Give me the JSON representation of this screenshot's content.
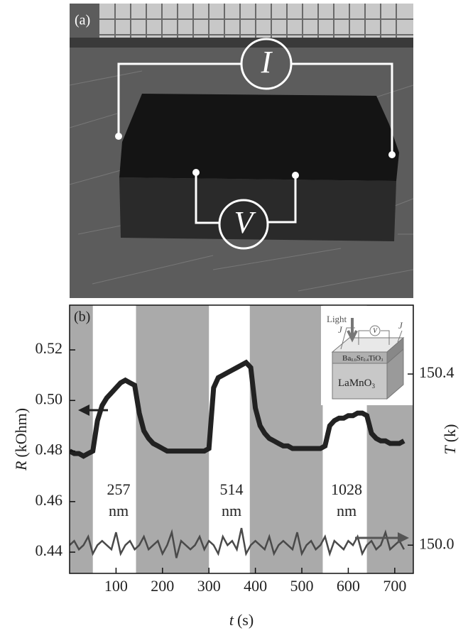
{
  "panel_a": {
    "label": "(a)",
    "current_symbol": "I",
    "voltage_symbol": "V"
  },
  "chart_data": {
    "type": "line",
    "panel_label": "(b)",
    "x_label": {
      "symbol": "t",
      "unit": "(s)"
    },
    "y_label": {
      "symbol": "R",
      "unit": "(kOhm)"
    },
    "y2_label": {
      "symbol": "T",
      "unit": "(k)"
    },
    "x": [
      0,
      10,
      20,
      30,
      40,
      50,
      60,
      70,
      80,
      90,
      100,
      110,
      120,
      130,
      140,
      150,
      160,
      170,
      180,
      190,
      200,
      210,
      220,
      230,
      240,
      250,
      260,
      270,
      280,
      290,
      300,
      310,
      320,
      330,
      340,
      350,
      360,
      370,
      380,
      390,
      400,
      410,
      420,
      430,
      440,
      450,
      460,
      470,
      480,
      490,
      500,
      510,
      520,
      530,
      540,
      550,
      560,
      570,
      580,
      590,
      600,
      610,
      620,
      630,
      640,
      650,
      660,
      670,
      680,
      690,
      700,
      710,
      720
    ],
    "series": [
      {
        "color": "#222222",
        "values": [
          0.48,
          0.479,
          0.479,
          0.478,
          0.479,
          0.48,
          0.492,
          0.498,
          0.501,
          0.503,
          0.505,
          0.507,
          0.508,
          0.507,
          0.506,
          0.495,
          0.488,
          0.485,
          0.483,
          0.482,
          0.481,
          0.48,
          0.48,
          0.48,
          0.48,
          0.48,
          0.48,
          0.48,
          0.48,
          0.48,
          0.481,
          0.505,
          0.509,
          0.51,
          0.511,
          0.512,
          0.513,
          0.514,
          0.515,
          0.513,
          0.497,
          0.49,
          0.487,
          0.485,
          0.484,
          0.483,
          0.482,
          0.482,
          0.481,
          0.481,
          0.481,
          0.481,
          0.481,
          0.481,
          0.481,
          0.482,
          0.49,
          0.492,
          0.493,
          0.493,
          0.494,
          0.494,
          0.495,
          0.495,
          0.494,
          0.487,
          0.485,
          0.484,
          0.484,
          0.483,
          0.483,
          0.483,
          0.484
        ]
      },
      {
        "color": "#4a4a4a",
        "axis": "y2",
        "values": [
          150.0,
          150.01,
          149.99,
          150.0,
          150.02,
          149.98,
          150.0,
          150.01,
          150.0,
          149.99,
          150.03,
          149.98,
          150.0,
          150.01,
          149.99,
          150.0,
          150.02,
          149.99,
          150.0,
          150.01,
          149.98,
          150.0,
          150.03,
          149.97,
          150.01,
          150.0,
          149.99,
          150.0,
          150.02,
          149.99,
          150.01,
          150.0,
          149.98,
          150.02,
          150.0,
          150.01,
          149.99,
          150.04,
          149.98,
          150.0,
          150.01,
          150.0,
          149.99,
          150.02,
          149.98,
          150.0,
          150.01,
          150.0,
          149.99,
          150.03,
          149.98,
          150.0,
          150.01,
          149.99,
          150.0,
          150.02,
          149.98,
          150.01,
          150.0,
          149.99,
          150.01,
          150.0,
          150.02,
          149.98,
          150.0,
          150.01,
          149.99,
          150.0,
          150.03,
          149.99,
          150.0,
          150.01,
          149.99
        ]
      }
    ],
    "xlim": [
      0,
      740
    ],
    "xticks": [
      100,
      200,
      300,
      400,
      500,
      600,
      700
    ],
    "ylim": [
      0.4316,
      0.5377
    ],
    "yticks": [
      0.44,
      0.46,
      0.48,
      {
        "value": 0.5,
        "label": "0.50"
      },
      0.52
    ],
    "y2lim": [
      149.934,
      150.561
    ],
    "y2ticks": [
      {
        "value": 150,
        "label": "150.0"
      },
      150.4
    ],
    "shaded_regions": [
      [
        0,
        50
      ],
      [
        143,
        300
      ],
      [
        388,
        545
      ],
      [
        640,
        740
      ]
    ],
    "shade_color": "#aaaaaa",
    "annotations": [
      [
        "257",
        "nm"
      ],
      [
        "514",
        "nm"
      ],
      [
        "1028",
        "nm"
      ]
    ],
    "inset": {
      "light": "Light",
      "current_left": "J",
      "current_right": "J",
      "voltage": "V",
      "film": [
        "Ba",
        "0.6",
        "Sr",
        "0.4",
        "TiO",
        "3"
      ],
      "substrate": [
        "LaMnO",
        "3"
      ]
    }
  }
}
